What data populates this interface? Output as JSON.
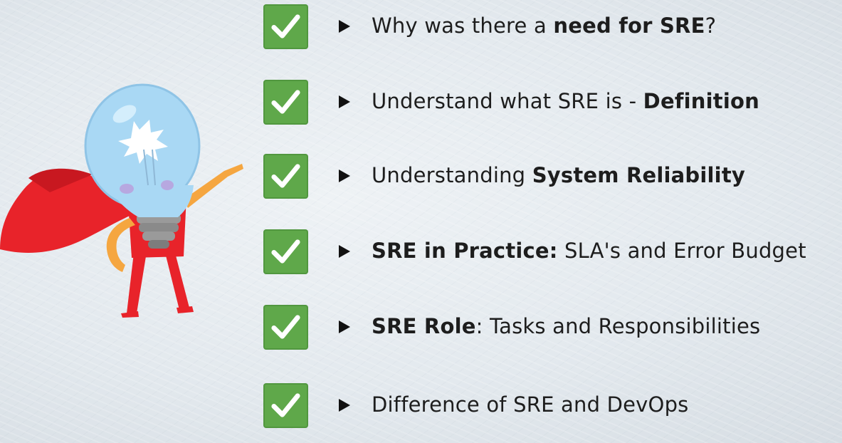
{
  "colors": {
    "check_green": "#5fa84a",
    "cape_red": "#e8232a",
    "bulb_blue": "#a9d8f4"
  },
  "items": [
    {
      "icon": "checkmark-icon",
      "pre": "Why was there a ",
      "bold": "need for SRE",
      "post": "?"
    },
    {
      "icon": "checkmark-icon",
      "pre": "Understand what SRE is - ",
      "bold": "Definition",
      "post": ""
    },
    {
      "icon": "checkmark-icon",
      "pre": "Understanding ",
      "bold": "System Reliability",
      "post": ""
    },
    {
      "icon": "checkmark-icon",
      "pre": "",
      "bold": "SRE in Practice:",
      "post": " SLA's and Error Budget"
    },
    {
      "icon": "checkmark-icon",
      "pre": "",
      "bold": "SRE Role",
      "post": ": Tasks and Responsibilities"
    },
    {
      "icon": "checkmark-icon",
      "pre": "Difference of SRE and DevOps",
      "bold": "",
      "post": ""
    }
  ]
}
